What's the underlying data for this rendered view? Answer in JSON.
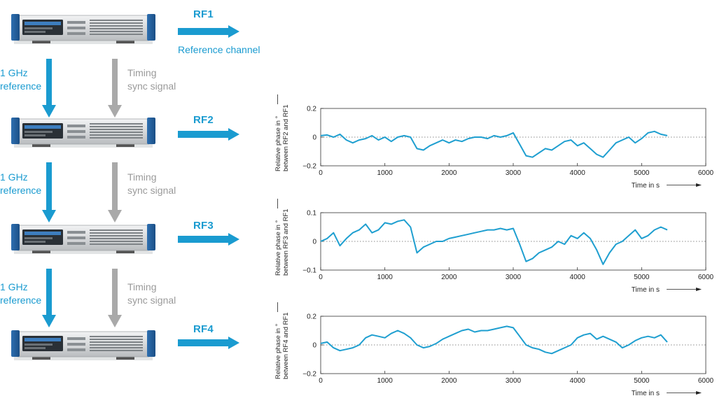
{
  "diagram": {
    "rf_channels": [
      {
        "label": "RF1",
        "sublabel": "Reference channel"
      },
      {
        "label": "RF2"
      },
      {
        "label": "RF3"
      },
      {
        "label": "RF4"
      }
    ],
    "links": [
      {
        "ref_line1": "1 GHz",
        "ref_line2": "reference",
        "timing_line1": "Timing",
        "timing_line2": "sync signal"
      },
      {
        "ref_line1": "1 GHz",
        "ref_line2": "reference",
        "timing_line1": "Timing",
        "timing_line2": "sync signal"
      },
      {
        "ref_line1": "1 GHz",
        "ref_line2": "reference",
        "timing_line1": "Timing",
        "timing_line2": "sync signal"
      }
    ],
    "colors": {
      "accent": "#1a9bd0",
      "timing": "#a9a9a9",
      "device_body": "#d8dadc",
      "trace": "#1f9fd0"
    }
  },
  "chart_data": [
    {
      "type": "line",
      "ylabel_line1": "Relative phase in °",
      "ylabel_line2": "between RF2 and RF1",
      "xlabel": "Time in s",
      "xlim": [
        0,
        6000
      ],
      "ylim": [
        -0.2,
        0.2
      ],
      "xticks": [
        "0",
        "1000",
        "2000",
        "3000",
        "4000",
        "5000",
        "6000"
      ],
      "yticks": [
        "0.2",
        "0",
        "−0.2"
      ],
      "series": [
        {
          "x": [
            0,
            100,
            200,
            300,
            400,
            500,
            600,
            700,
            800,
            900,
            1000,
            1100,
            1200,
            1300,
            1400,
            1500,
            1600,
            1700,
            1800,
            1900,
            2000,
            2100,
            2200,
            2300,
            2400,
            2500,
            2600,
            2700,
            2800,
            2900,
            3000,
            3100,
            3200,
            3300,
            3400,
            3500,
            3600,
            3700,
            3800,
            3900,
            4000,
            4100,
            4200,
            4300,
            4400,
            4500,
            4600,
            4700,
            4800,
            4900,
            5000,
            5100,
            5200,
            5300,
            5400
          ],
          "values": [
            0.01,
            0.015,
            0.0,
            0.02,
            -0.02,
            -0.04,
            -0.02,
            -0.01,
            0.01,
            -0.02,
            0.0,
            -0.03,
            0.0,
            0.01,
            0.0,
            -0.08,
            -0.09,
            -0.06,
            -0.04,
            -0.02,
            -0.04,
            -0.02,
            -0.03,
            -0.01,
            0.0,
            0.0,
            -0.01,
            0.01,
            0.0,
            0.01,
            0.03,
            -0.05,
            -0.13,
            -0.14,
            -0.11,
            -0.08,
            -0.09,
            -0.06,
            -0.03,
            -0.02,
            -0.06,
            -0.04,
            -0.08,
            -0.12,
            -0.14,
            -0.09,
            -0.04,
            -0.02,
            0.0,
            -0.04,
            -0.01,
            0.03,
            0.04,
            0.02,
            0.01
          ]
        }
      ]
    },
    {
      "type": "line",
      "ylabel_line1": "Relative phase in °",
      "ylabel_line2": "between RF3 and RF1",
      "xlabel": "Time in s",
      "xlim": [
        0,
        6000
      ],
      "ylim": [
        -0.1,
        0.1
      ],
      "xticks": [
        "0",
        "1000",
        "2000",
        "3000",
        "4000",
        "5000",
        "6000"
      ],
      "yticks": [
        "0.1",
        "0",
        "−0.1"
      ],
      "series": [
        {
          "x": [
            0,
            100,
            200,
            300,
            400,
            500,
            600,
            700,
            800,
            900,
            1000,
            1100,
            1200,
            1300,
            1400,
            1500,
            1600,
            1700,
            1800,
            1900,
            2000,
            2100,
            2200,
            2300,
            2400,
            2500,
            2600,
            2700,
            2800,
            2900,
            3000,
            3100,
            3200,
            3300,
            3400,
            3500,
            3600,
            3700,
            3800,
            3900,
            4000,
            4100,
            4200,
            4300,
            4400,
            4500,
            4600,
            4700,
            4800,
            4900,
            5000,
            5100,
            5200,
            5300,
            5400
          ],
          "values": [
            0.0,
            0.01,
            0.03,
            -0.015,
            0.01,
            0.03,
            0.04,
            0.06,
            0.03,
            0.04,
            0.065,
            0.06,
            0.07,
            0.075,
            0.05,
            -0.04,
            -0.02,
            -0.01,
            0.0,
            0.0,
            0.01,
            0.015,
            0.02,
            0.025,
            0.03,
            0.035,
            0.04,
            0.04,
            0.045,
            0.04,
            0.045,
            -0.01,
            -0.07,
            -0.06,
            -0.04,
            -0.03,
            -0.02,
            0.0,
            -0.01,
            0.02,
            0.01,
            0.03,
            0.01,
            -0.03,
            -0.08,
            -0.04,
            -0.01,
            0.0,
            0.02,
            0.04,
            0.01,
            0.02,
            0.04,
            0.05,
            0.04
          ]
        }
      ]
    },
    {
      "type": "line",
      "ylabel_line1": "Relative phase in °",
      "ylabel_line2": "between RF4 and RF1",
      "xlabel": "Time in s",
      "xlim": [
        0,
        6000
      ],
      "ylim": [
        -0.2,
        0.2
      ],
      "xticks": [
        "0",
        "1000",
        "2000",
        "3000",
        "4000",
        "5000",
        "6000"
      ],
      "yticks": [
        "0.2",
        "0",
        "−0.2"
      ],
      "series": [
        {
          "x": [
            0,
            100,
            200,
            300,
            400,
            500,
            600,
            700,
            800,
            900,
            1000,
            1100,
            1200,
            1300,
            1400,
            1500,
            1600,
            1700,
            1800,
            1900,
            2000,
            2100,
            2200,
            2300,
            2400,
            2500,
            2600,
            2700,
            2800,
            2900,
            3000,
            3100,
            3200,
            3300,
            3400,
            3500,
            3600,
            3700,
            3800,
            3900,
            4000,
            4100,
            4200,
            4300,
            4400,
            4500,
            4600,
            4700,
            4800,
            4900,
            5000,
            5100,
            5200,
            5300,
            5400
          ],
          "values": [
            0.01,
            0.02,
            -0.02,
            -0.04,
            -0.03,
            -0.02,
            0.0,
            0.05,
            0.07,
            0.06,
            0.05,
            0.08,
            0.1,
            0.08,
            0.05,
            0.0,
            -0.02,
            -0.01,
            0.01,
            0.04,
            0.06,
            0.08,
            0.1,
            0.11,
            0.09,
            0.1,
            0.1,
            0.11,
            0.12,
            0.13,
            0.12,
            0.06,
            0.0,
            -0.02,
            -0.03,
            -0.05,
            -0.06,
            -0.04,
            -0.02,
            0.0,
            0.05,
            0.07,
            0.08,
            0.04,
            0.06,
            0.04,
            0.02,
            -0.02,
            0.0,
            0.03,
            0.05,
            0.06,
            0.05,
            0.07,
            0.02
          ]
        }
      ]
    }
  ]
}
